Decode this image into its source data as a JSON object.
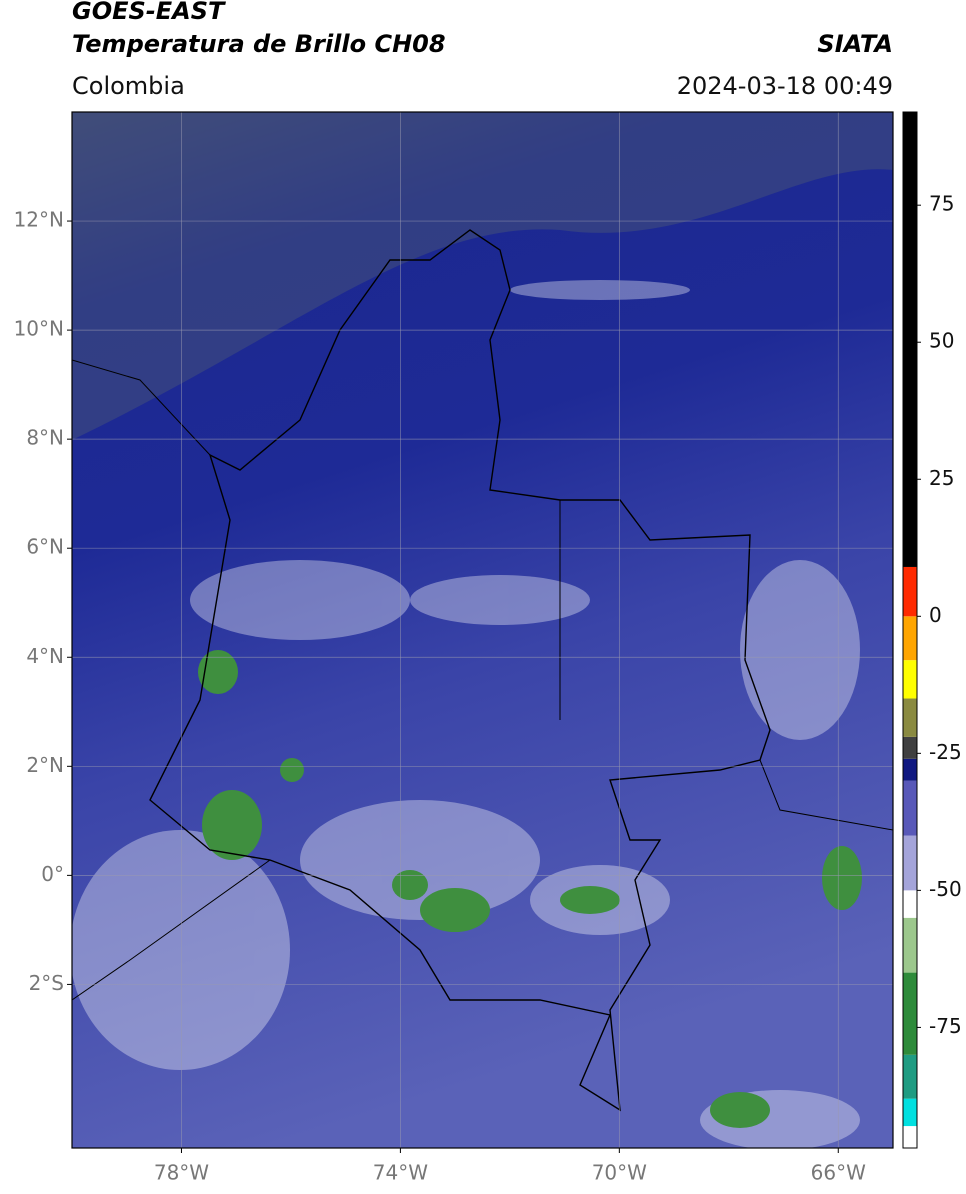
{
  "chart_data": {
    "type": "map",
    "title": "GOES-EAST",
    "subtitle": "Temperatura de Brillo CH08",
    "source": "SIATA",
    "region": "Colombia",
    "date": "2024-03-18 00:49",
    "xlim": [
      -80,
      -65
    ],
    "ylim": [
      -5,
      14
    ],
    "xticks": [
      {
        "value": -78,
        "label": "78°W"
      },
      {
        "value": -74,
        "label": "74°W"
      },
      {
        "value": -70,
        "label": "70°W"
      },
      {
        "value": -66,
        "label": "66°W"
      }
    ],
    "yticks": [
      {
        "value": -2,
        "label": "2°S"
      },
      {
        "value": 0,
        "label": "0°"
      },
      {
        "value": 2,
        "label": "2°N"
      },
      {
        "value": 4,
        "label": "4°N"
      },
      {
        "value": 6,
        "label": "6°N"
      },
      {
        "value": 8,
        "label": "8°N"
      },
      {
        "value": 10,
        "label": "10°N"
      },
      {
        "value": 12,
        "label": "12°N"
      }
    ],
    "grid": true,
    "colorbar": {
      "lim": [
        -97,
        92
      ],
      "ticks": [
        -75,
        -50,
        -25,
        0,
        25,
        50,
        75
      ],
      "stops": [
        {
          "value": -97,
          "color": "#ffffff"
        },
        {
          "value": -93,
          "color": "#00e0e0"
        },
        {
          "value": -88,
          "color": "#1f9c82"
        },
        {
          "value": -80,
          "color": "#2e8b3a"
        },
        {
          "value": -65,
          "color": "#9cc78c"
        },
        {
          "value": -55,
          "color": "#ffffff"
        },
        {
          "value": -50,
          "color": "#a4a4da"
        },
        {
          "value": -40,
          "color": "#5858b8"
        },
        {
          "value": -30,
          "color": "#101880"
        },
        {
          "value": -26,
          "color": "#404040"
        },
        {
          "value": -22,
          "color": "#8a8a40"
        },
        {
          "value": -15,
          "color": "#ffff00"
        },
        {
          "value": -8,
          "color": "#ffa500"
        },
        {
          "value": 0,
          "color": "#ff2a00"
        },
        {
          "value": 9,
          "color": "#000000"
        }
      ]
    }
  }
}
